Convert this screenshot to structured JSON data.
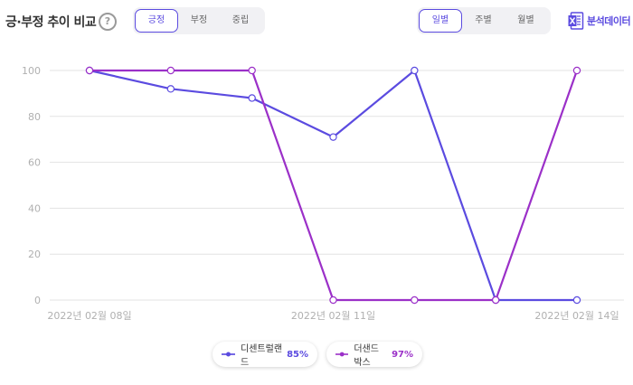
{
  "header": {
    "title": "긍·부정 추이 비교",
    "help_icon": "?",
    "sentiment_tabs": [
      {
        "label": "긍정",
        "active": true
      },
      {
        "label": "부정",
        "active": false
      },
      {
        "label": "중립",
        "active": false
      }
    ],
    "period_tabs": [
      {
        "label": "일별",
        "active": true
      },
      {
        "label": "주별",
        "active": false
      },
      {
        "label": "월별",
        "active": false
      }
    ],
    "excel": {
      "icon": "excel-icon",
      "label": "분석데이터"
    }
  },
  "colors": {
    "accent": "#5b4be0",
    "series1": "#5b4be0",
    "series2": "#9b30c8",
    "grid": "#e3e3e3",
    "tick": "#b0b0b0"
  },
  "chart_data": {
    "type": "line",
    "x": [
      "2022년 02월 08일",
      "2022년 02월 09일",
      "2022년 02월 10일",
      "2022년 02월 11일",
      "2022년 02월 12일",
      "2022년 02월 13일",
      "2022년 02월 14일"
    ],
    "x_tick_labels": [
      "2022년 02월 08일",
      "2022년 02월 11일",
      "2022년 02월 14일"
    ],
    "y_ticks": [
      0,
      20,
      40,
      60,
      80,
      100
    ],
    "ylim": [
      0,
      100
    ],
    "grid": true,
    "legend": "bottom-center",
    "series": [
      {
        "name": "디센트럴랜드",
        "percent": "85%",
        "color": "#5b4be0",
        "values": [
          100,
          92,
          88,
          71,
          100,
          0,
          0
        ]
      },
      {
        "name": "더샌드박스",
        "percent": "97%",
        "color": "#9b30c8",
        "values": [
          100,
          100,
          100,
          0,
          0,
          0,
          100
        ]
      }
    ]
  }
}
